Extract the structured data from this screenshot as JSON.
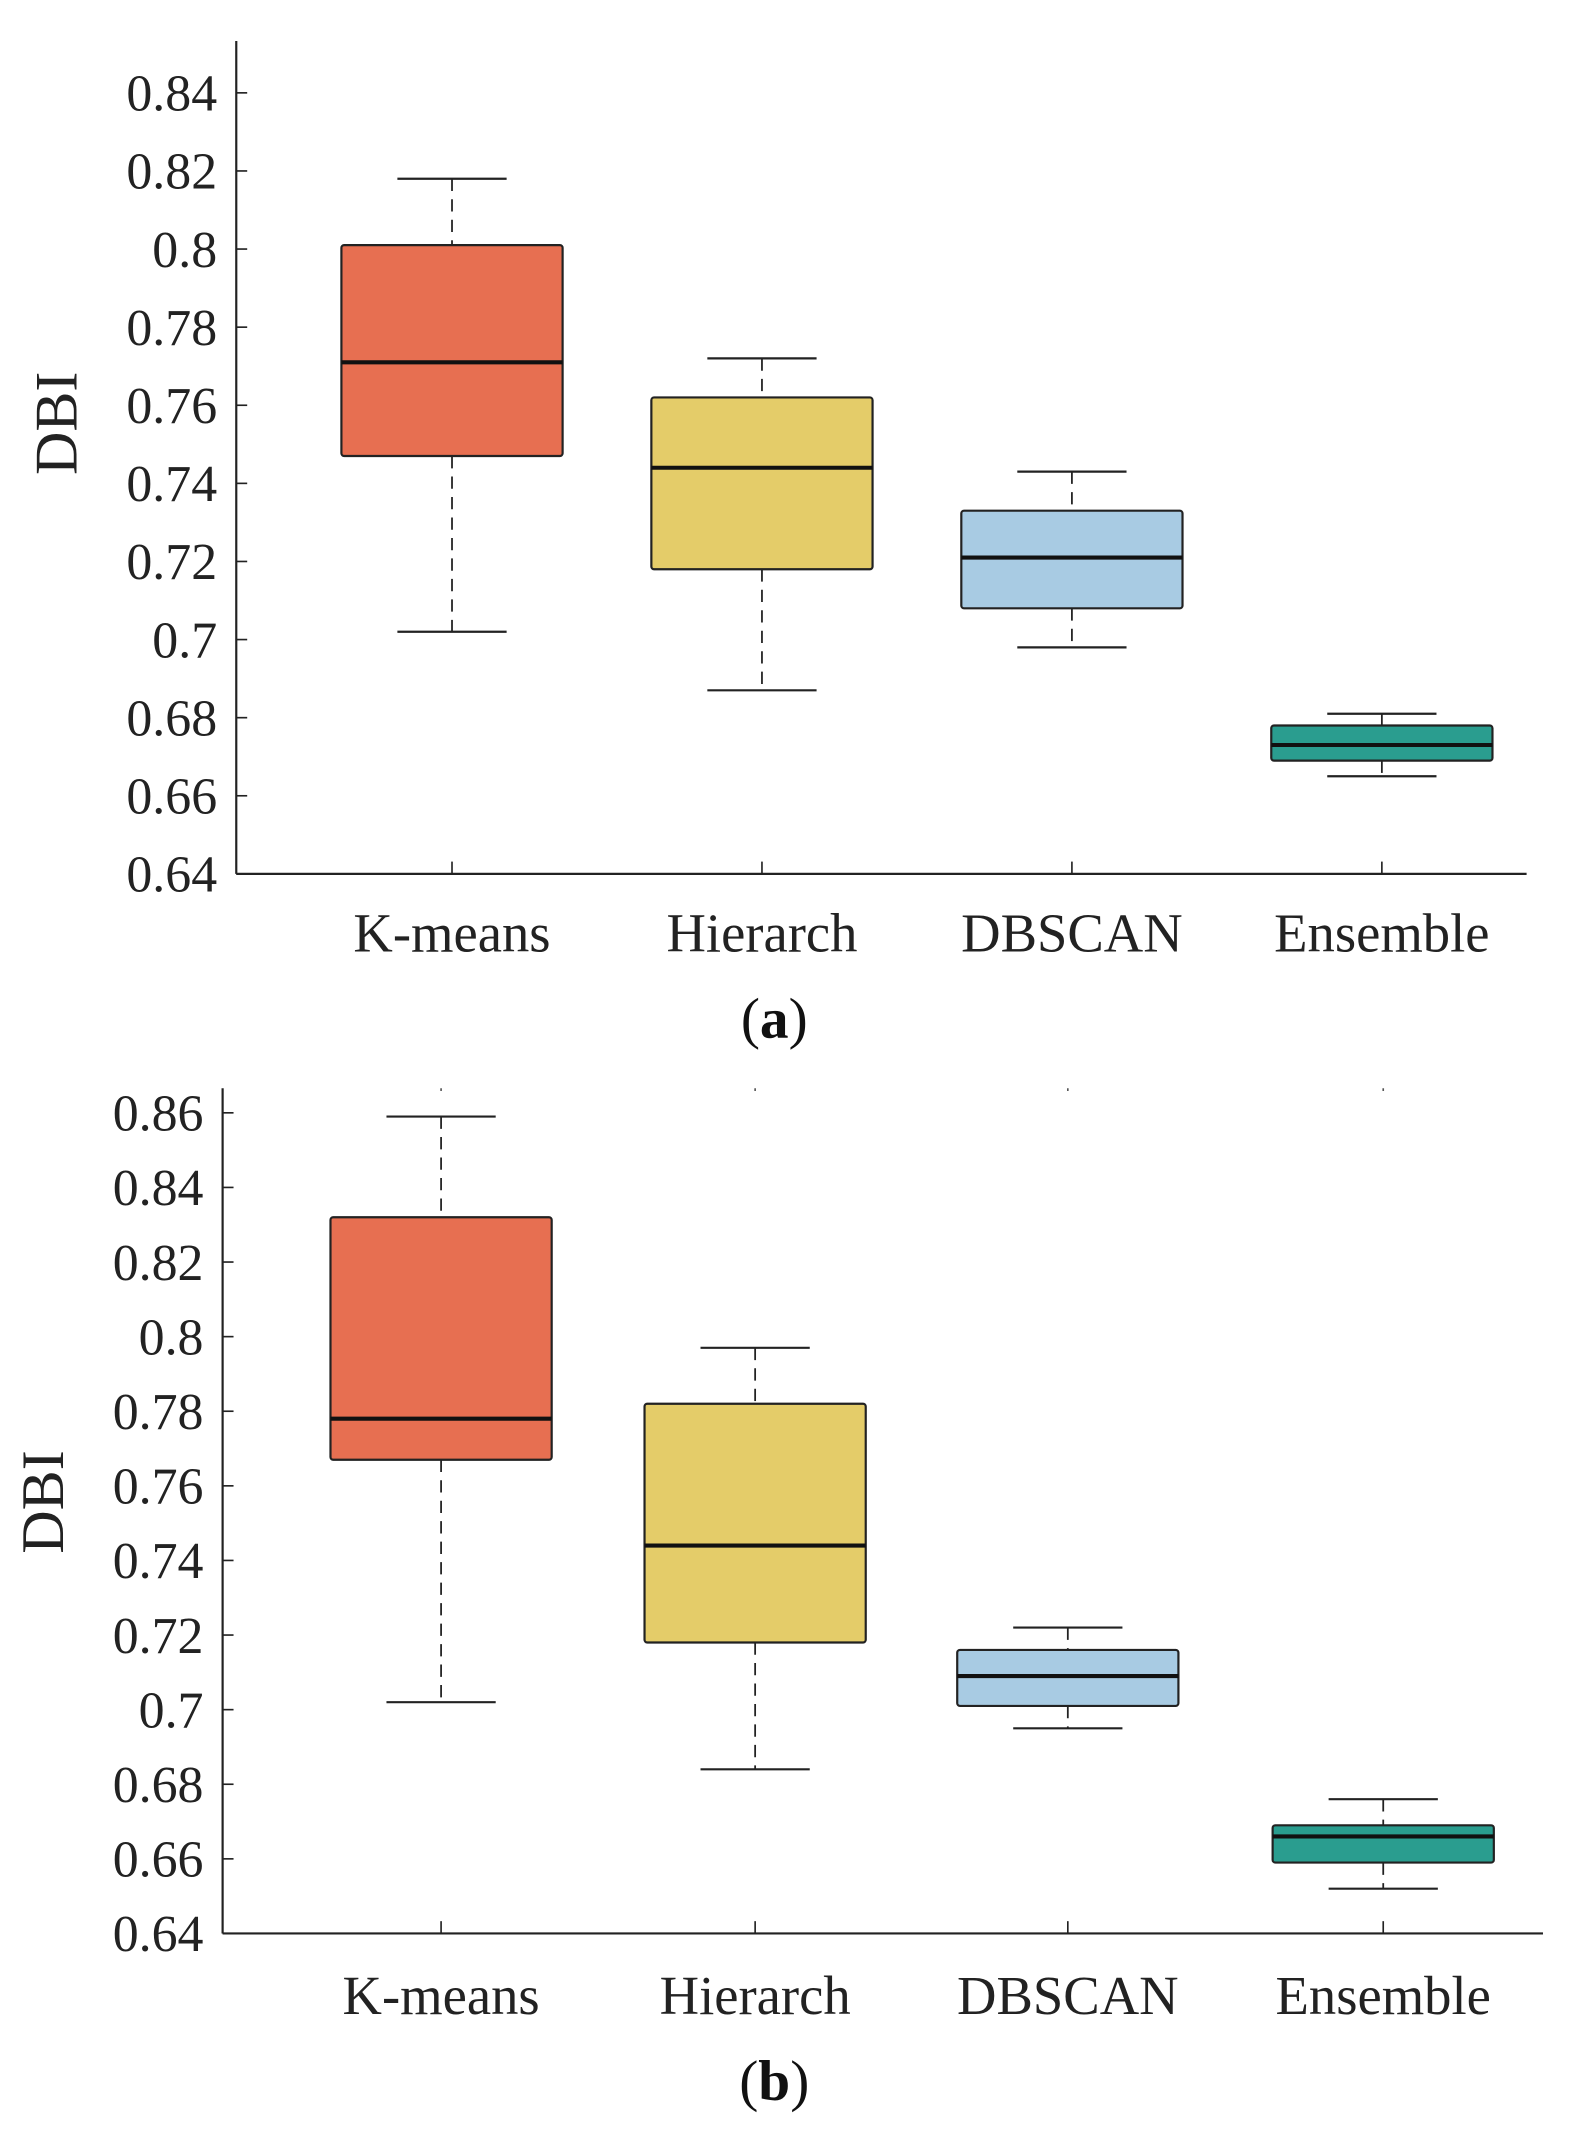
{
  "chart_data": [
    {
      "type": "box",
      "panel_label": "a",
      "ylabel": "DBI",
      "xlabel": "",
      "ylim": [
        0.64,
        0.85
      ],
      "yticks": [
        "0.64",
        "0.66",
        "0.68",
        "0.7",
        "0.72",
        "0.74",
        "0.76",
        "0.78",
        "0.8",
        "0.82",
        "0.84"
      ],
      "grid": false,
      "categories": [
        "K-means",
        "Hierarch",
        "DBSCAN",
        "Ensemble"
      ],
      "colors": [
        "#E76F51",
        "#E4CC69",
        "#A8CBE3",
        "#2A9D8F"
      ],
      "boxes": [
        {
          "min": 0.702,
          "q1": 0.747,
          "median": 0.771,
          "q3": 0.801,
          "max": 0.818
        },
        {
          "min": 0.687,
          "q1": 0.718,
          "median": 0.744,
          "q3": 0.762,
          "max": 0.772
        },
        {
          "min": 0.698,
          "q1": 0.708,
          "median": 0.721,
          "q3": 0.733,
          "max": 0.743
        },
        {
          "min": 0.665,
          "q1": 0.669,
          "median": 0.673,
          "q3": 0.678,
          "max": 0.681
        }
      ]
    },
    {
      "type": "box",
      "panel_label": "b",
      "ylabel": "DBI",
      "xlabel": "",
      "ylim": [
        0.64,
        0.866
      ],
      "yticks": [
        "0.64",
        "0.66",
        "0.68",
        "0.7",
        "0.72",
        "0.74",
        "0.76",
        "0.78",
        "0.8",
        "0.82",
        "0.84",
        "0.86"
      ],
      "grid": false,
      "categories": [
        "K-means",
        "Hierarch",
        "DBSCAN",
        "Ensemble"
      ],
      "colors": [
        "#E76F51",
        "#E4CC69",
        "#A8CBE3",
        "#2A9D8F"
      ],
      "boxes": [
        {
          "min": 0.702,
          "q1": 0.767,
          "median": 0.778,
          "q3": 0.832,
          "max": 0.859
        },
        {
          "min": 0.684,
          "q1": 0.718,
          "median": 0.744,
          "q3": 0.782,
          "max": 0.797
        },
        {
          "min": 0.695,
          "q1": 0.701,
          "median": 0.709,
          "q3": 0.716,
          "max": 0.722
        },
        {
          "min": 0.652,
          "q1": 0.659,
          "median": 0.666,
          "q3": 0.669,
          "max": 0.676
        }
      ]
    }
  ]
}
